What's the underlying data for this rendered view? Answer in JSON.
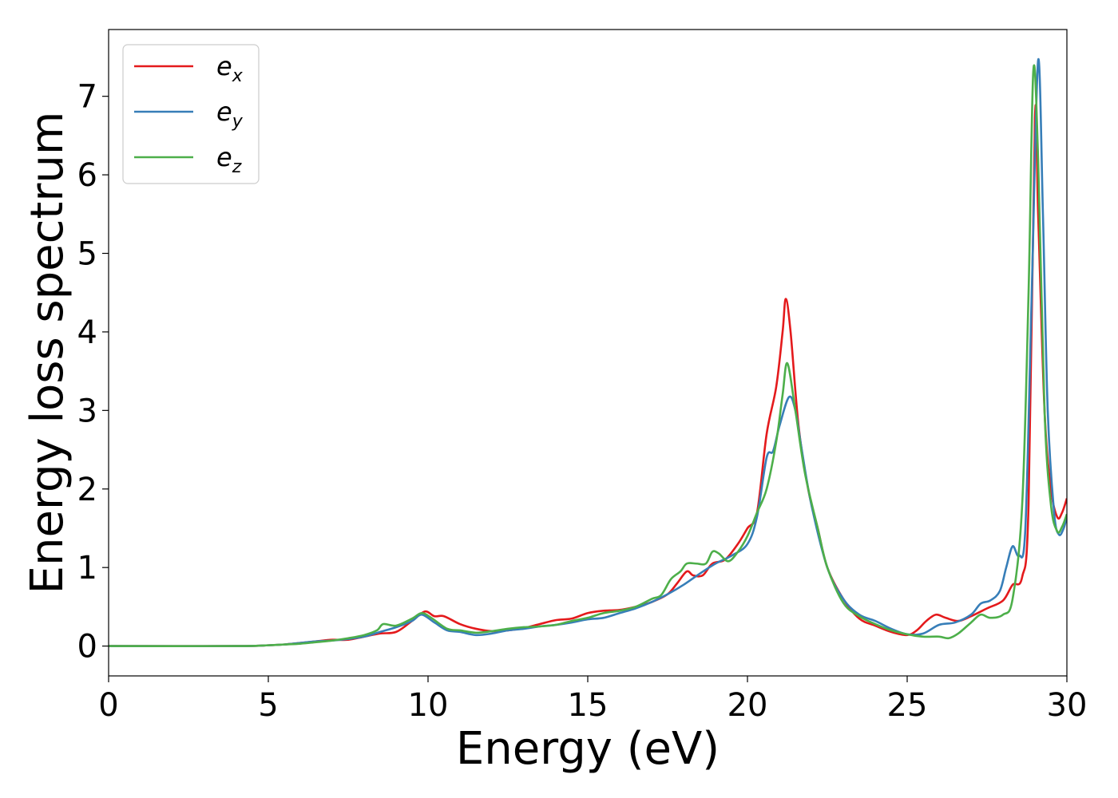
{
  "chart_data": {
    "type": "line",
    "xlabel": "Energy (eV)",
    "ylabel": "Energy loss spectrum",
    "xlim": [
      0,
      30
    ],
    "ylim": [
      -0.38,
      7.85
    ],
    "xticks": [
      0,
      5,
      10,
      15,
      20,
      25,
      30
    ],
    "yticks": [
      0,
      1,
      2,
      3,
      4,
      5,
      6,
      7
    ],
    "grid": false,
    "legend_position": "top-left",
    "series": [
      {
        "name": "e",
        "subscript": "x",
        "color": "#e41a1c",
        "points": [
          [
            0,
            0
          ],
          [
            4,
            0
          ],
          [
            5,
            0.01
          ],
          [
            5.5,
            0.02
          ],
          [
            6,
            0.04
          ],
          [
            6.5,
            0.06
          ],
          [
            7,
            0.08
          ],
          [
            7.5,
            0.08
          ],
          [
            8,
            0.12
          ],
          [
            8.5,
            0.16
          ],
          [
            9,
            0.18
          ],
          [
            9.5,
            0.32
          ],
          [
            9.9,
            0.44
          ],
          [
            10.2,
            0.38
          ],
          [
            10.5,
            0.38
          ],
          [
            11,
            0.28
          ],
          [
            11.5,
            0.22
          ],
          [
            12,
            0.19
          ],
          [
            12.5,
            0.2
          ],
          [
            13,
            0.23
          ],
          [
            13.5,
            0.28
          ],
          [
            14,
            0.33
          ],
          [
            14.5,
            0.35
          ],
          [
            15,
            0.42
          ],
          [
            15.5,
            0.45
          ],
          [
            16,
            0.46
          ],
          [
            16.5,
            0.5
          ],
          [
            17,
            0.56
          ],
          [
            17.5,
            0.66
          ],
          [
            17.8,
            0.8
          ],
          [
            18.1,
            0.95
          ],
          [
            18.3,
            0.9
          ],
          [
            18.6,
            0.9
          ],
          [
            18.9,
            1.05
          ],
          [
            19.3,
            1.1
          ],
          [
            19.7,
            1.3
          ],
          [
            20,
            1.5
          ],
          [
            20.3,
            1.7
          ],
          [
            20.6,
            2.7
          ],
          [
            20.9,
            3.3
          ],
          [
            21.1,
            4.0
          ],
          [
            21.2,
            4.42
          ],
          [
            21.35,
            4.0
          ],
          [
            21.6,
            2.8
          ],
          [
            21.9,
            2.0
          ],
          [
            22.2,
            1.5
          ],
          [
            22.5,
            1.0
          ],
          [
            23,
            0.6
          ],
          [
            23.5,
            0.35
          ],
          [
            24,
            0.26
          ],
          [
            24.5,
            0.18
          ],
          [
            25,
            0.14
          ],
          [
            25.3,
            0.2
          ],
          [
            25.6,
            0.32
          ],
          [
            25.9,
            0.4
          ],
          [
            26.2,
            0.36
          ],
          [
            26.6,
            0.32
          ],
          [
            27,
            0.38
          ],
          [
            27.5,
            0.48
          ],
          [
            28,
            0.58
          ],
          [
            28.3,
            0.78
          ],
          [
            28.6,
            0.88
          ],
          [
            28.8,
            1.8
          ],
          [
            29,
            6.72
          ],
          [
            29.1,
            5.5
          ],
          [
            29.3,
            3.0
          ],
          [
            29.5,
            2.0
          ],
          [
            29.7,
            1.64
          ],
          [
            29.85,
            1.7
          ],
          [
            30,
            1.88
          ]
        ]
      },
      {
        "name": "e",
        "subscript": "y",
        "color": "#377eb8",
        "points": [
          [
            0,
            0
          ],
          [
            4,
            0
          ],
          [
            5,
            0.01
          ],
          [
            5.5,
            0.02
          ],
          [
            6,
            0.04
          ],
          [
            6.5,
            0.06
          ],
          [
            7,
            0.07
          ],
          [
            7.5,
            0.09
          ],
          [
            8,
            0.12
          ],
          [
            8.5,
            0.18
          ],
          [
            9,
            0.24
          ],
          [
            9.5,
            0.32
          ],
          [
            9.8,
            0.4
          ],
          [
            10.2,
            0.3
          ],
          [
            10.6,
            0.2
          ],
          [
            11,
            0.18
          ],
          [
            11.5,
            0.14
          ],
          [
            12,
            0.16
          ],
          [
            12.5,
            0.2
          ],
          [
            13,
            0.22
          ],
          [
            13.5,
            0.25
          ],
          [
            14,
            0.27
          ],
          [
            14.5,
            0.3
          ],
          [
            15,
            0.34
          ],
          [
            15.5,
            0.36
          ],
          [
            16,
            0.42
          ],
          [
            16.5,
            0.48
          ],
          [
            17,
            0.56
          ],
          [
            17.5,
            0.66
          ],
          [
            18,
            0.78
          ],
          [
            18.5,
            0.92
          ],
          [
            19,
            1.05
          ],
          [
            19.5,
            1.15
          ],
          [
            20,
            1.3
          ],
          [
            20.3,
            1.65
          ],
          [
            20.6,
            2.4
          ],
          [
            20.8,
            2.48
          ],
          [
            21,
            2.8
          ],
          [
            21.3,
            3.17
          ],
          [
            21.5,
            3.0
          ],
          [
            21.7,
            2.5
          ],
          [
            22,
            1.8
          ],
          [
            22.5,
            1.0
          ],
          [
            23,
            0.6
          ],
          [
            23.5,
            0.4
          ],
          [
            24,
            0.32
          ],
          [
            24.5,
            0.22
          ],
          [
            25,
            0.15
          ],
          [
            25.5,
            0.16
          ],
          [
            26,
            0.27
          ],
          [
            26.5,
            0.3
          ],
          [
            27,
            0.4
          ],
          [
            27.3,
            0.54
          ],
          [
            27.6,
            0.58
          ],
          [
            27.9,
            0.7
          ],
          [
            28.1,
            1.0
          ],
          [
            28.3,
            1.27
          ],
          [
            28.5,
            1.15
          ],
          [
            28.7,
            1.5
          ],
          [
            28.9,
            4.5
          ],
          [
            29.1,
            7.46
          ],
          [
            29.25,
            5.5
          ],
          [
            29.4,
            3.0
          ],
          [
            29.6,
            1.7
          ],
          [
            29.75,
            1.42
          ],
          [
            29.9,
            1.5
          ],
          [
            30,
            1.65
          ]
        ]
      },
      {
        "name": "e",
        "subscript": "z",
        "color": "#4daf4a",
        "points": [
          [
            0,
            0
          ],
          [
            4,
            0
          ],
          [
            5,
            0.01
          ],
          [
            5.5,
            0.02
          ],
          [
            6,
            0.03
          ],
          [
            6.5,
            0.05
          ],
          [
            7,
            0.07
          ],
          [
            7.5,
            0.1
          ],
          [
            8,
            0.14
          ],
          [
            8.4,
            0.2
          ],
          [
            8.6,
            0.28
          ],
          [
            9,
            0.26
          ],
          [
            9.5,
            0.35
          ],
          [
            9.8,
            0.42
          ],
          [
            10.1,
            0.36
          ],
          [
            10.6,
            0.22
          ],
          [
            11,
            0.2
          ],
          [
            11.5,
            0.17
          ],
          [
            12,
            0.19
          ],
          [
            12.5,
            0.22
          ],
          [
            13,
            0.24
          ],
          [
            13.5,
            0.25
          ],
          [
            14,
            0.27
          ],
          [
            14.5,
            0.32
          ],
          [
            15,
            0.36
          ],
          [
            15.5,
            0.42
          ],
          [
            16,
            0.45
          ],
          [
            16.5,
            0.5
          ],
          [
            17,
            0.6
          ],
          [
            17.3,
            0.65
          ],
          [
            17.6,
            0.85
          ],
          [
            17.9,
            0.95
          ],
          [
            18.1,
            1.05
          ],
          [
            18.4,
            1.05
          ],
          [
            18.7,
            1.05
          ],
          [
            18.9,
            1.2
          ],
          [
            19.1,
            1.18
          ],
          [
            19.4,
            1.08
          ],
          [
            19.7,
            1.2
          ],
          [
            20,
            1.4
          ],
          [
            20.3,
            1.7
          ],
          [
            20.6,
            2.0
          ],
          [
            20.9,
            2.6
          ],
          [
            21.1,
            3.2
          ],
          [
            21.25,
            3.6
          ],
          [
            21.5,
            3.0
          ],
          [
            21.8,
            2.2
          ],
          [
            22.2,
            1.5
          ],
          [
            22.5,
            1.0
          ],
          [
            23,
            0.55
          ],
          [
            23.5,
            0.38
          ],
          [
            24,
            0.28
          ],
          [
            24.5,
            0.2
          ],
          [
            25,
            0.15
          ],
          [
            25.5,
            0.12
          ],
          [
            26,
            0.12
          ],
          [
            26.3,
            0.1
          ],
          [
            26.6,
            0.16
          ],
          [
            27,
            0.3
          ],
          [
            27.3,
            0.4
          ],
          [
            27.6,
            0.36
          ],
          [
            28,
            0.4
          ],
          [
            28.3,
            0.6
          ],
          [
            28.6,
            1.8
          ],
          [
            28.8,
            4.5
          ],
          [
            28.95,
            7.33
          ],
          [
            29.1,
            6.2
          ],
          [
            29.3,
            3.0
          ],
          [
            29.5,
            1.8
          ],
          [
            29.7,
            1.46
          ],
          [
            29.85,
            1.52
          ],
          [
            30,
            1.68
          ]
        ]
      }
    ]
  }
}
